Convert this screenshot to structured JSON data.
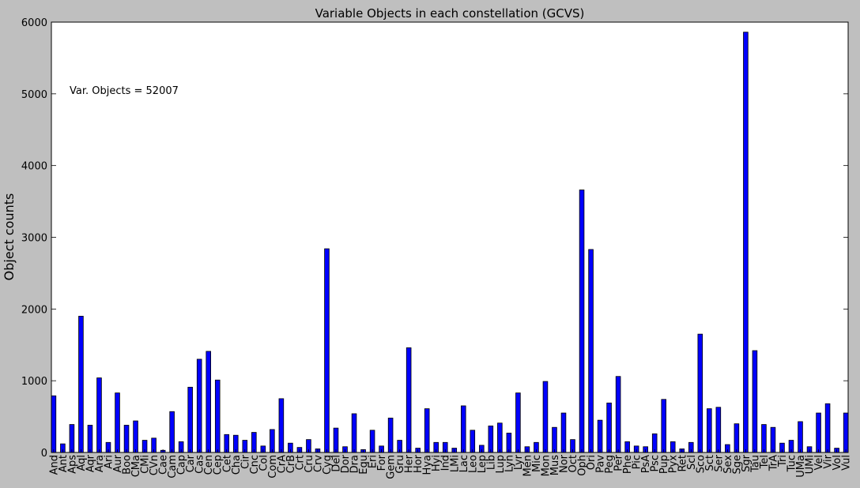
{
  "chart_data": {
    "type": "bar",
    "title": "Variable Objects in each constellation (GCVS)",
    "xlabel": "",
    "ylabel": "Object counts",
    "ylim": [
      0,
      6000
    ],
    "yticks": [
      0,
      1000,
      2000,
      3000,
      4000,
      5000,
      6000
    ],
    "grid": false,
    "legend": null,
    "bar_color": "#0000ff",
    "annotation": {
      "text": "Var. Objects = 52007",
      "x": 0,
      "y": 5000
    },
    "categories": [
      "And",
      "Ant",
      "Aps",
      "Aql",
      "Aqr",
      "Ara",
      "Ari",
      "Aur",
      "Boo",
      "CMa",
      "CMi",
      "CVn",
      "Cae",
      "Cam",
      "Cap",
      "Car",
      "Cas",
      "Cen",
      "Cep",
      "Cet",
      "Cha",
      "Cir",
      "Cnc",
      "Col",
      "Com",
      "CrA",
      "CrB",
      "Crt",
      "Cru",
      "Crv",
      "Cyg",
      "Del",
      "Dor",
      "Dra",
      "Equ",
      "Eri",
      "For",
      "Gem",
      "Gru",
      "Her",
      "Hor",
      "Hya",
      "Hyi",
      "Ind",
      "LMi",
      "Lac",
      "Leo",
      "Lep",
      "Lib",
      "Lup",
      "Lyn",
      "Lyr",
      "Men",
      "Mic",
      "Mon",
      "Mus",
      "Nor",
      "Oct",
      "Oph",
      "Ori",
      "Pav",
      "Peg",
      "Per",
      "Phe",
      "Pic",
      "PsA",
      "Psc",
      "Pup",
      "Pyx",
      "Ret",
      "Scl",
      "Sco",
      "Sct",
      "Ser",
      "Sex",
      "Sge",
      "Sgr",
      "Tau",
      "Tel",
      "TrA",
      "Tri",
      "Tuc",
      "UMa",
      "UMi",
      "Vel",
      "Vir",
      "Vol",
      "Vul"
    ],
    "values": [
      790,
      120,
      390,
      1900,
      380,
      1040,
      140,
      830,
      380,
      440,
      170,
      200,
      30,
      570,
      150,
      910,
      1300,
      1410,
      1010,
      250,
      240,
      170,
      280,
      90,
      320,
      750,
      130,
      70,
      180,
      50,
      2840,
      340,
      80,
      540,
      40,
      310,
      90,
      480,
      170,
      1460,
      60,
      610,
      140,
      140,
      60,
      650,
      310,
      100,
      370,
      410,
      270,
      830,
      80,
      140,
      990,
      350,
      550,
      180,
      3660,
      2830,
      450,
      690,
      1060,
      150,
      90,
      80,
      260,
      740,
      150,
      50,
      140,
      1650,
      610,
      630,
      110,
      400,
      5860,
      1420,
      390,
      350,
      130,
      170,
      430,
      80,
      550,
      680,
      60,
      550
    ]
  }
}
